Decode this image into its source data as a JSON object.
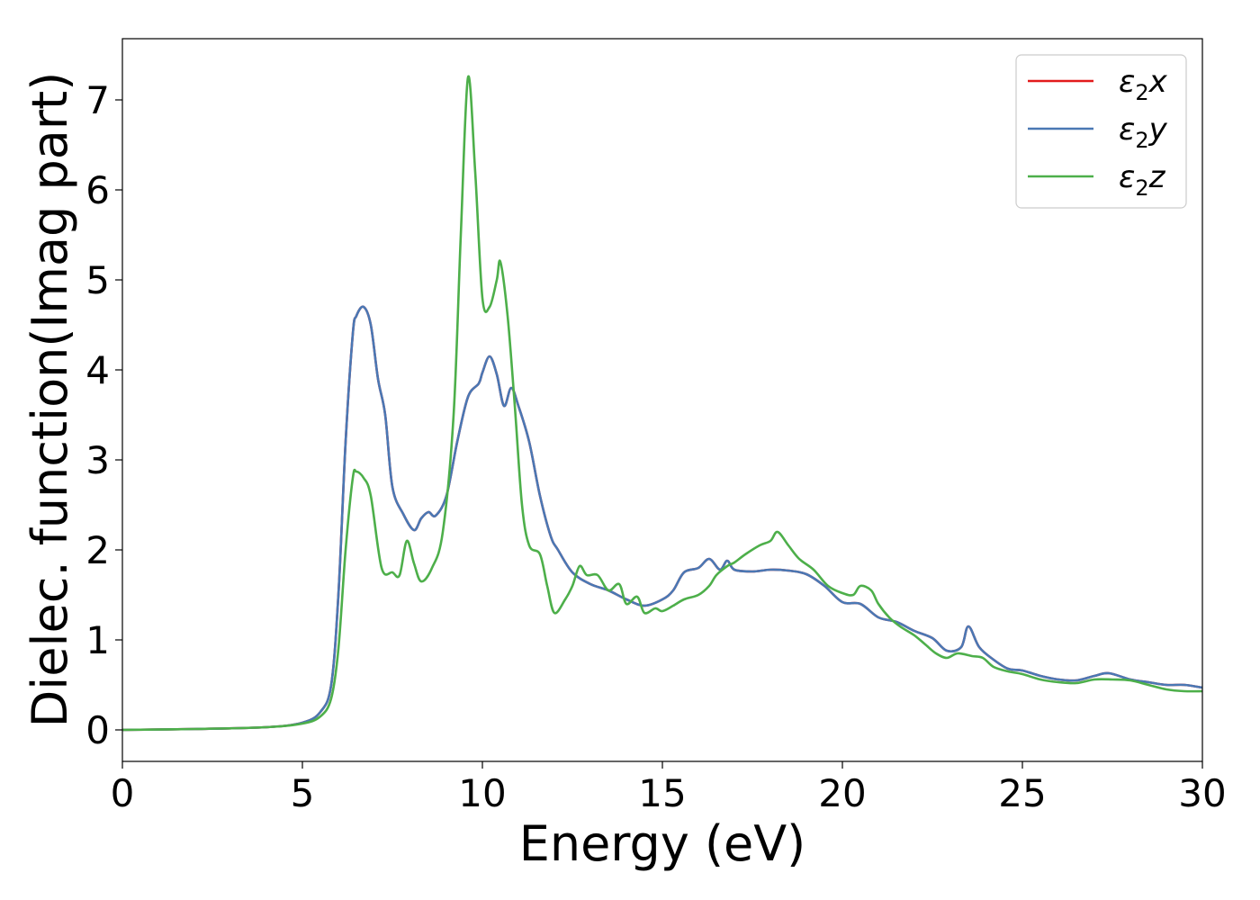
{
  "chart_data": {
    "type": "line",
    "xlabel": "Energy (eV)",
    "ylabel": "Dielec. function(Imag part)",
    "xlim": [
      0,
      30
    ],
    "ylim": [
      -0.35,
      7.68
    ],
    "xticks": [
      0,
      5,
      10,
      15,
      20,
      25,
      30
    ],
    "yticks": [
      0,
      1,
      2,
      3,
      4,
      5,
      6,
      7
    ],
    "grid": false,
    "legend_position": "top-right",
    "series": [
      {
        "name": "ε2x",
        "label_base": "ε",
        "label_sub": "2",
        "label_var": "x",
        "color": "#e31a1c",
        "x": [
          0,
          2,
          4,
          5,
          5.5,
          5.8,
          6.0,
          6.2,
          6.4,
          6.5,
          6.7,
          6.9,
          7.1,
          7.3,
          7.5,
          7.8,
          8.1,
          8.3,
          8.5,
          8.7,
          9.0,
          9.3,
          9.6,
          9.9,
          10.0,
          10.2,
          10.4,
          10.6,
          10.8,
          11.0,
          11.3,
          11.6,
          11.9,
          12.1,
          12.5,
          13.0,
          13.5,
          14.0,
          14.5,
          15.0,
          15.3,
          15.6,
          16.0,
          16.3,
          16.6,
          16.8,
          17.0,
          17.5,
          18.0,
          18.5,
          19.0,
          19.5,
          20.0,
          20.5,
          21.0,
          21.5,
          22.0,
          22.5,
          22.9,
          23.3,
          23.5,
          23.8,
          24.2,
          24.6,
          25.0,
          25.5,
          26.0,
          26.5,
          27.0,
          27.4,
          28.0,
          28.5,
          29.0,
          29.5,
          30.0
        ],
        "values": [
          0.0,
          0.01,
          0.03,
          0.08,
          0.2,
          0.5,
          1.5,
          3.2,
          4.4,
          4.6,
          4.7,
          4.5,
          3.9,
          3.5,
          2.7,
          2.4,
          2.22,
          2.35,
          2.42,
          2.38,
          2.6,
          3.2,
          3.7,
          3.85,
          3.97,
          4.15,
          3.95,
          3.6,
          3.8,
          3.6,
          3.2,
          2.6,
          2.15,
          2.0,
          1.75,
          1.62,
          1.55,
          1.45,
          1.38,
          1.45,
          1.55,
          1.75,
          1.8,
          1.9,
          1.78,
          1.88,
          1.78,
          1.76,
          1.78,
          1.77,
          1.73,
          1.6,
          1.42,
          1.4,
          1.25,
          1.2,
          1.1,
          1.02,
          0.88,
          0.92,
          1.15,
          0.92,
          0.78,
          0.68,
          0.66,
          0.6,
          0.56,
          0.55,
          0.6,
          0.63,
          0.56,
          0.53,
          0.5,
          0.5,
          0.47
        ]
      },
      {
        "name": "ε2y",
        "label_base": "ε",
        "label_sub": "2",
        "label_var": "y",
        "color": "#4a78b4",
        "x": [
          0,
          2,
          4,
          5,
          5.5,
          5.8,
          6.0,
          6.2,
          6.4,
          6.5,
          6.7,
          6.9,
          7.1,
          7.3,
          7.5,
          7.8,
          8.1,
          8.3,
          8.5,
          8.7,
          9.0,
          9.3,
          9.6,
          9.9,
          10.0,
          10.2,
          10.4,
          10.6,
          10.8,
          11.0,
          11.3,
          11.6,
          11.9,
          12.1,
          12.5,
          13.0,
          13.5,
          14.0,
          14.5,
          15.0,
          15.3,
          15.6,
          16.0,
          16.3,
          16.6,
          16.8,
          17.0,
          17.5,
          18.0,
          18.5,
          19.0,
          19.5,
          20.0,
          20.5,
          21.0,
          21.5,
          22.0,
          22.5,
          22.9,
          23.3,
          23.5,
          23.8,
          24.2,
          24.6,
          25.0,
          25.5,
          26.0,
          26.5,
          27.0,
          27.4,
          28.0,
          28.5,
          29.0,
          29.5,
          30.0
        ],
        "values": [
          0.0,
          0.01,
          0.03,
          0.08,
          0.2,
          0.5,
          1.5,
          3.2,
          4.4,
          4.6,
          4.7,
          4.5,
          3.9,
          3.5,
          2.7,
          2.4,
          2.22,
          2.35,
          2.42,
          2.38,
          2.6,
          3.2,
          3.7,
          3.85,
          3.97,
          4.15,
          3.95,
          3.6,
          3.8,
          3.6,
          3.2,
          2.6,
          2.15,
          2.0,
          1.75,
          1.62,
          1.55,
          1.45,
          1.38,
          1.45,
          1.55,
          1.75,
          1.8,
          1.9,
          1.78,
          1.88,
          1.78,
          1.76,
          1.78,
          1.77,
          1.73,
          1.6,
          1.42,
          1.4,
          1.25,
          1.2,
          1.1,
          1.02,
          0.88,
          0.92,
          1.15,
          0.92,
          0.78,
          0.68,
          0.66,
          0.6,
          0.56,
          0.55,
          0.6,
          0.63,
          0.56,
          0.53,
          0.5,
          0.5,
          0.47
        ]
      },
      {
        "name": "ε2z",
        "label_base": "ε",
        "label_sub": "2",
        "label_var": "z",
        "color": "#4daf4a",
        "x": [
          0,
          2,
          4,
          5,
          5.5,
          5.8,
          6.0,
          6.2,
          6.4,
          6.5,
          6.7,
          6.9,
          7.2,
          7.5,
          7.7,
          7.9,
          8.1,
          8.3,
          8.6,
          8.9,
          9.2,
          9.4,
          9.6,
          9.8,
          10.0,
          10.2,
          10.4,
          10.5,
          10.7,
          10.9,
          11.1,
          11.3,
          11.6,
          11.8,
          12.0,
          12.3,
          12.5,
          12.7,
          12.9,
          13.2,
          13.5,
          13.8,
          14.0,
          14.3,
          14.5,
          14.8,
          15.0,
          15.3,
          15.6,
          16.0,
          16.3,
          16.5,
          16.8,
          17.0,
          17.3,
          17.7,
          18.0,
          18.2,
          18.5,
          18.8,
          19.2,
          19.6,
          20.0,
          20.3,
          20.5,
          20.8,
          21.0,
          21.3,
          21.6,
          22.0,
          22.3,
          22.6,
          22.9,
          23.2,
          23.6,
          23.9,
          24.2,
          24.6,
          25.0,
          25.5,
          26.0,
          26.5,
          27.0,
          27.5,
          28.0,
          28.5,
          29.0,
          29.5,
          30.0
        ],
        "values": [
          0.0,
          0.01,
          0.03,
          0.07,
          0.15,
          0.35,
          0.9,
          2.0,
          2.8,
          2.87,
          2.8,
          2.6,
          1.8,
          1.75,
          1.72,
          2.1,
          1.85,
          1.65,
          1.8,
          2.2,
          3.5,
          5.5,
          7.25,
          6.2,
          4.8,
          4.7,
          5.0,
          5.2,
          4.6,
          3.6,
          2.5,
          2.05,
          1.95,
          1.6,
          1.3,
          1.45,
          1.6,
          1.82,
          1.72,
          1.72,
          1.55,
          1.62,
          1.4,
          1.48,
          1.3,
          1.35,
          1.32,
          1.38,
          1.45,
          1.5,
          1.6,
          1.72,
          1.82,
          1.86,
          1.95,
          2.05,
          2.1,
          2.2,
          2.05,
          1.9,
          1.78,
          1.6,
          1.52,
          1.5,
          1.6,
          1.55,
          1.4,
          1.25,
          1.15,
          1.05,
          0.95,
          0.85,
          0.8,
          0.85,
          0.82,
          0.8,
          0.7,
          0.65,
          0.62,
          0.56,
          0.53,
          0.52,
          0.56,
          0.56,
          0.55,
          0.5,
          0.45,
          0.43,
          0.43
        ]
      }
    ]
  }
}
